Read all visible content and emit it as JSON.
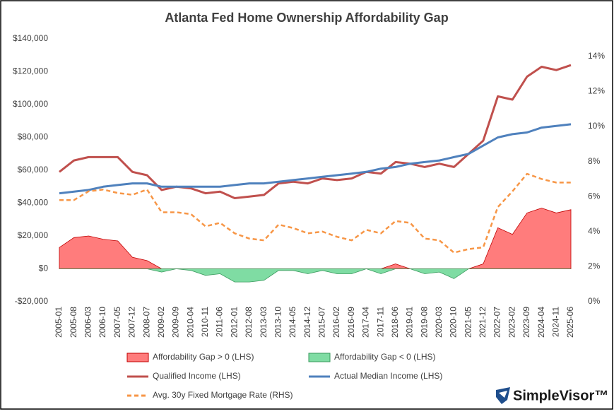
{
  "chart_data": {
    "type": "line",
    "title": "Atlanta Fed Home Ownership Affordability Gap",
    "logo": "SimpleVisor™",
    "categories": [
      "2005-01",
      "2005-08",
      "2006-03",
      "2006-10",
      "2007-05",
      "2007-12",
      "2008-07",
      "2009-02",
      "2009-09",
      "2010-04",
      "2010-11",
      "2011-06",
      "2012-01",
      "2012-08",
      "2013-03",
      "2013-10",
      "2014-05",
      "2014-12",
      "2015-07",
      "2016-02",
      "2016-09",
      "2017-04",
      "2017-11",
      "2018-06",
      "2019-01",
      "2019-08",
      "2020-03",
      "2020-10",
      "2021-05",
      "2021-12",
      "2022-07",
      "2023-02",
      "2023-09",
      "2024-04",
      "2024-11",
      "2025-06"
    ],
    "series": [
      {
        "name": "Affordability Gap > 0 (LHS)",
        "kind": "area",
        "color": "#ff7c7c",
        "values": [
          13000,
          19000,
          20000,
          18000,
          17000,
          7000,
          5000,
          0,
          0,
          0,
          0,
          0,
          0,
          0,
          0,
          0,
          0,
          0,
          0,
          0,
          0,
          0,
          0,
          3000,
          0,
          0,
          0,
          0,
          0,
          3000,
          25000,
          21000,
          34000,
          37000,
          34000,
          36000
        ]
      },
      {
        "name": "Affordability Gap < 0 (LHS)",
        "kind": "area",
        "color": "#7fdca3",
        "values": [
          0,
          0,
          0,
          0,
          0,
          0,
          0,
          -2000,
          0,
          -1000,
          -4000,
          -3000,
          -8000,
          -8000,
          -7000,
          -1000,
          -1000,
          -3000,
          -1000,
          -3000,
          -3000,
          0,
          -3000,
          0,
          0,
          -3000,
          -2000,
          -6000,
          0,
          0,
          0,
          0,
          0,
          0,
          0,
          0
        ]
      },
      {
        "name": "Qualified Income (LHS)",
        "kind": "line",
        "color": "#c0504d",
        "values": [
          59000,
          66000,
          68000,
          68000,
          68000,
          59000,
          57000,
          48000,
          50000,
          49000,
          46000,
          47000,
          43000,
          44000,
          45000,
          52000,
          53000,
          52000,
          55000,
          54000,
          55000,
          59000,
          58000,
          65000,
          64000,
          62000,
          64000,
          62000,
          70000,
          78000,
          105000,
          103000,
          117000,
          123000,
          121000,
          124000
        ]
      },
      {
        "name": "Actual Median Income (LHS)",
        "kind": "line",
        "color": "#4f81bd",
        "values": [
          46000,
          47000,
          48000,
          50000,
          51000,
          52000,
          52000,
          50000,
          50000,
          50000,
          50000,
          50000,
          51000,
          52000,
          52000,
          53000,
          54000,
          55000,
          56000,
          57000,
          58000,
          59000,
          61000,
          62000,
          64000,
          65000,
          66000,
          68000,
          70000,
          75000,
          80000,
          82000,
          83000,
          86000,
          87000,
          88000
        ]
      },
      {
        "name": "Avg. 30y Fixed Mortgage Rate (RHS)",
        "kind": "dashed",
        "axis": "y2",
        "color": "#f79646",
        "values": [
          5.8,
          5.8,
          6.3,
          6.4,
          6.2,
          6.1,
          6.4,
          5.1,
          5.1,
          5.0,
          4.3,
          4.5,
          3.9,
          3.6,
          3.5,
          4.4,
          4.2,
          3.9,
          4.0,
          3.7,
          3.5,
          4.1,
          3.9,
          4.6,
          4.5,
          3.6,
          3.5,
          2.8,
          3.0,
          3.1,
          5.4,
          6.3,
          7.3,
          7.0,
          6.8,
          6.8
        ]
      }
    ],
    "ylim": [
      -20000,
      140000
    ],
    "yticks": [
      {
        "value": -20000,
        "label": "-$20,000"
      },
      {
        "value": 0,
        "label": "$0"
      },
      {
        "value": 20000,
        "label": "$20,000"
      },
      {
        "value": 40000,
        "label": "$40,000"
      },
      {
        "value": 60000,
        "label": "$60,000"
      },
      {
        "value": 80000,
        "label": "$80,000"
      },
      {
        "value": 100000,
        "label": "$100,000"
      },
      {
        "value": 120000,
        "label": "$120,000"
      },
      {
        "value": 140000,
        "label": "$140,000"
      }
    ],
    "y2lim": [
      0,
      15
    ],
    "y2ticks": [
      {
        "value": 0,
        "label": "0%"
      },
      {
        "value": 2,
        "label": "2%"
      },
      {
        "value": 4,
        "label": "4%"
      },
      {
        "value": 6,
        "label": "6%"
      },
      {
        "value": 8,
        "label": "8%"
      },
      {
        "value": 10,
        "label": "10%"
      },
      {
        "value": 12,
        "label": "12%"
      },
      {
        "value": 14,
        "label": "14%"
      }
    ],
    "grid": false
  }
}
